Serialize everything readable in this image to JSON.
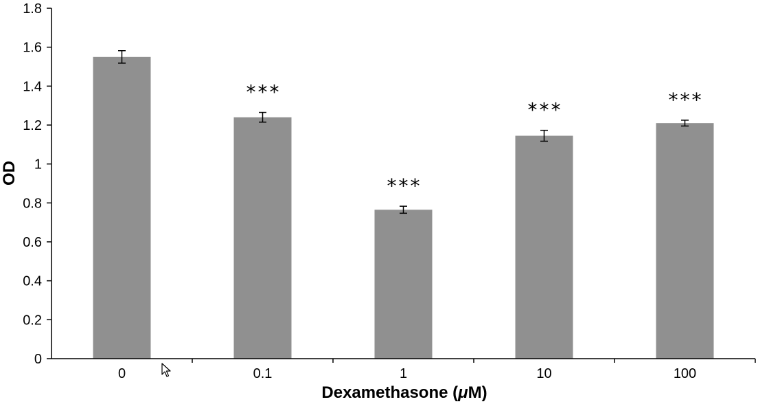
{
  "chart_data": {
    "type": "bar",
    "title": "",
    "xlabel": "Dexamethasone (μM)",
    "xlabel_parts": {
      "prefix": "Dexamethasone (",
      "mu": "μ",
      "suffix": "M)"
    },
    "ylabel": "OD",
    "ylim": [
      0,
      1.8
    ],
    "yticks": [
      "0",
      "0.2",
      "0.4",
      "0.6",
      "0.8",
      "1",
      "1.2",
      "1.4",
      "1.6",
      "1.8"
    ],
    "categories": [
      "0",
      "0.1",
      "1",
      "10",
      "100"
    ],
    "values": [
      1.55,
      1.24,
      0.765,
      1.145,
      1.21
    ],
    "errors": [
      0.032,
      0.025,
      0.018,
      0.028,
      0.015
    ],
    "significance": [
      "",
      "***",
      "***",
      "***",
      "***"
    ],
    "grid": false,
    "bar_color": "#909090"
  }
}
